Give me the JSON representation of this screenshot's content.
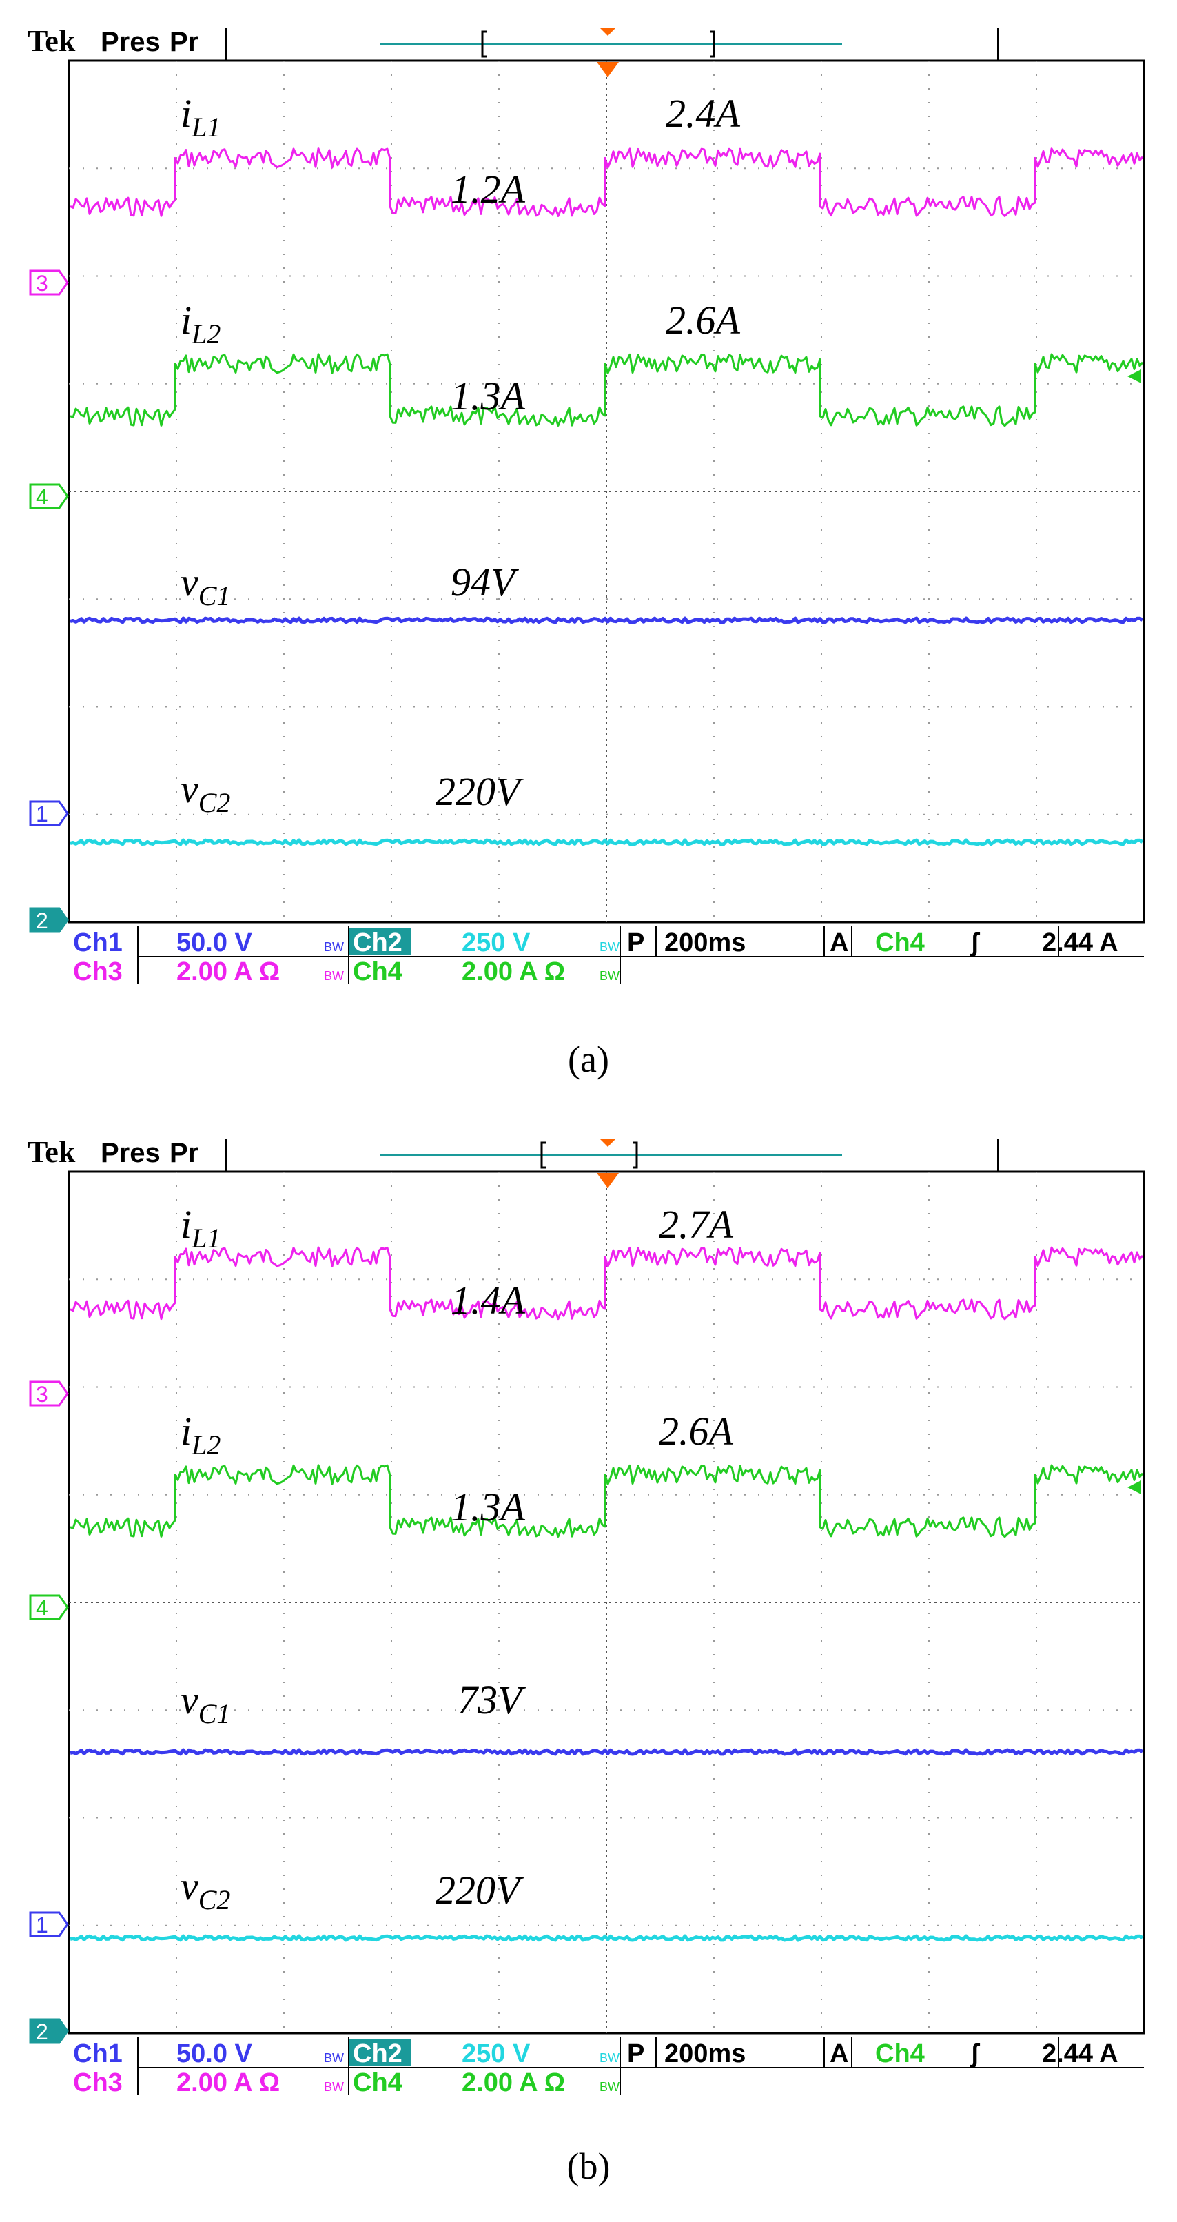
{
  "colors": {
    "ch1": "#3a3aee",
    "ch2": "#22d6e0",
    "ch3": "#ee22ee",
    "ch4": "#22cc22",
    "frame": "#000000"
  },
  "header": {
    "logo": "Tek",
    "status": "Pres",
    "mode": "Pr"
  },
  "markers": {
    "ch3": "3",
    "ch4": "4",
    "ch1": "1",
    "ch2": "2"
  },
  "settings_bar": {
    "ch1_label": "Ch1",
    "ch1_scale": "50.0 V",
    "ch2_label": "Ch2",
    "ch2_scale": "250 V",
    "ch3_label": "Ch3",
    "ch3_scale": "2.00 A Ω",
    "ch4_label": "Ch4",
    "ch4_scale": "2.00 A Ω",
    "bw_mark": "BW",
    "timebase_prefix": "P",
    "timebase": "200ms",
    "trigger_prefix": "A",
    "trigger_source": "Ch4",
    "trigger_slope": "ʃ",
    "trigger_level": "2.44 A"
  },
  "labels": {
    "iL1_main": "i",
    "iL1_sub": "L1",
    "iL2_main": "i",
    "iL2_sub": "L2",
    "vC1_main": "v",
    "vC1_sub": "C1",
    "vC2_main": "v",
    "vC2_sub": "C2"
  },
  "chart_data": [
    {
      "type": "line",
      "caption": "(a)",
      "x_unit": "ms",
      "x_div": 200,
      "series": [
        {
          "name": "iL1",
          "channel": "Ch3",
          "unit": "A",
          "levels": [
            1.2,
            2.4
          ],
          "high_label": "2.4A",
          "low_label": "1.2A"
        },
        {
          "name": "iL2",
          "channel": "Ch4",
          "unit": "A",
          "levels": [
            1.3,
            2.6
          ],
          "high_label": "2.6A",
          "low_label": "1.3A"
        },
        {
          "name": "vC1",
          "channel": "Ch1",
          "unit": "V",
          "value": 94,
          "label": "94V"
        },
        {
          "name": "vC2",
          "channel": "Ch2",
          "unit": "V",
          "value": 220,
          "label": "220V"
        }
      ]
    },
    {
      "type": "line",
      "caption": "(b)",
      "x_unit": "ms",
      "x_div": 200,
      "series": [
        {
          "name": "iL1",
          "channel": "Ch3",
          "unit": "A",
          "levels": [
            1.4,
            2.7
          ],
          "high_label": "2.7A",
          "low_label": "1.4A"
        },
        {
          "name": "iL2",
          "channel": "Ch4",
          "unit": "A",
          "levels": [
            1.3,
            2.6
          ],
          "high_label": "2.6A",
          "low_label": "1.3A"
        },
        {
          "name": "vC1",
          "channel": "Ch1",
          "unit": "V",
          "value": 73,
          "label": "73V"
        },
        {
          "name": "vC2",
          "channel": "Ch2",
          "unit": "V",
          "value": 220,
          "label": "220V"
        }
      ]
    }
  ]
}
